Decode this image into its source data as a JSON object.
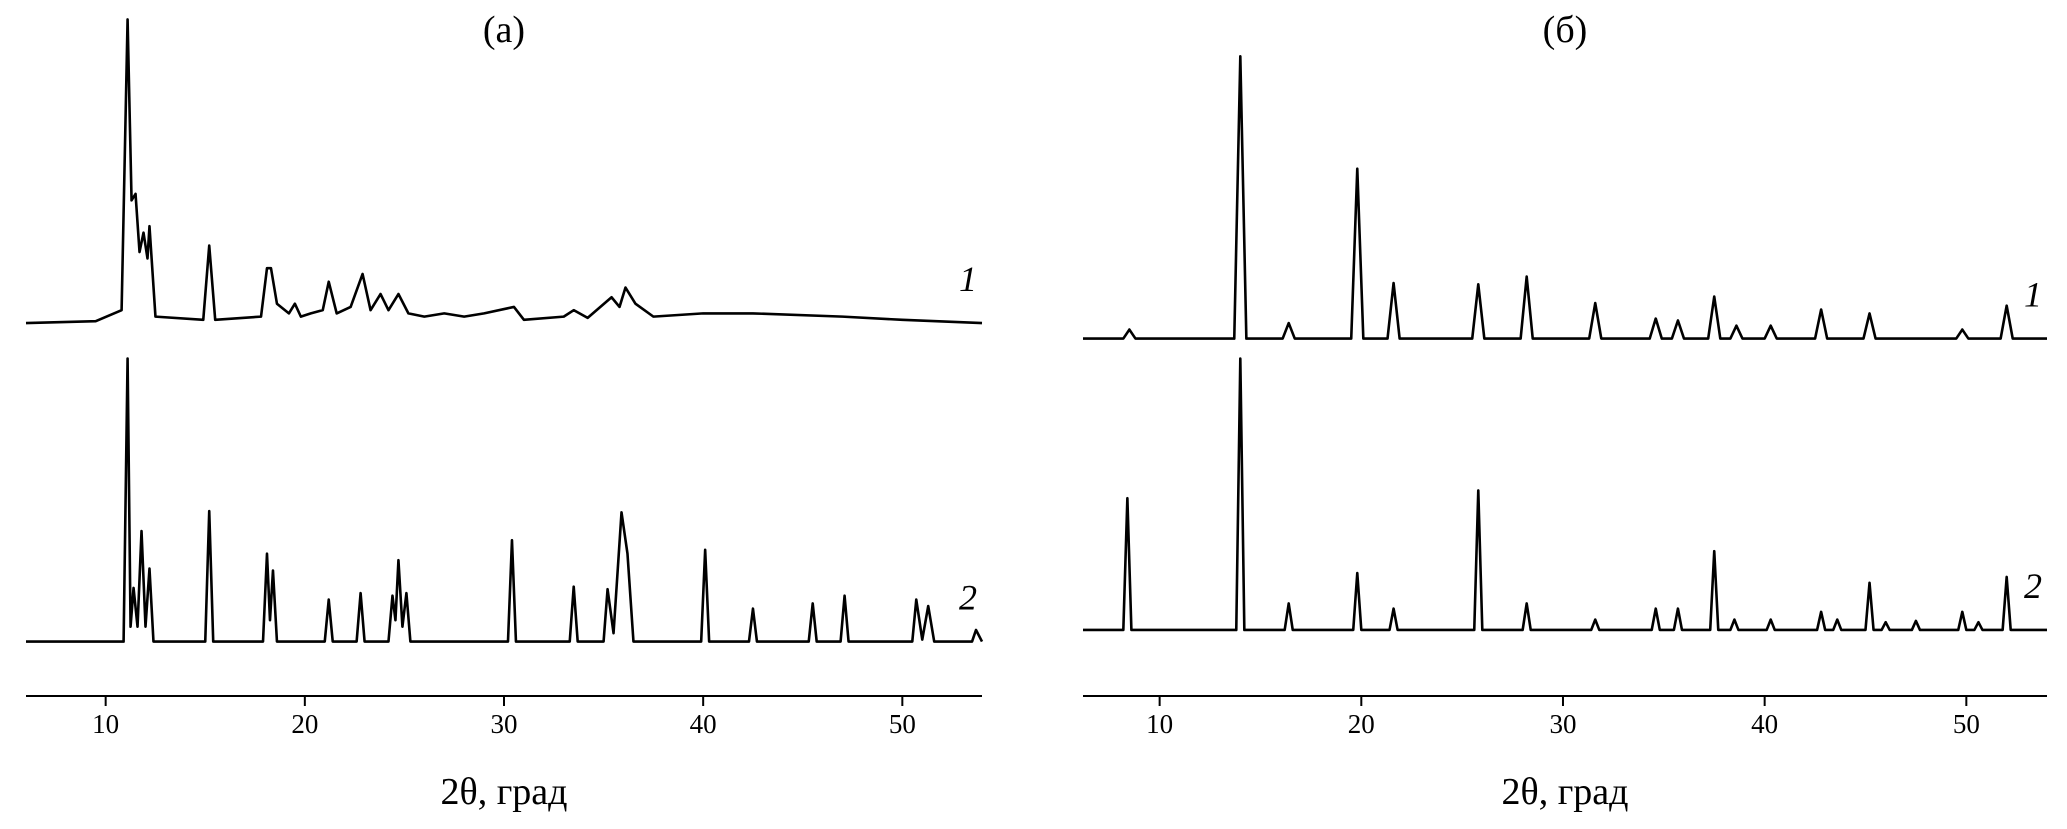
{
  "chart_data": [
    {
      "type": "line",
      "title": "(а)",
      "xlabel": "2θ, град",
      "xlim": [
        6,
        54
      ],
      "xticks": [
        10,
        20,
        30,
        40,
        50
      ],
      "ylim": [
        0,
        100
      ],
      "series": [
        {
          "name": "1",
          "color": "#000000",
          "x": [
            6,
            9.5,
            10.8,
            11.1,
            11.3,
            11.5,
            11.7,
            11.9,
            12.1,
            12.2,
            12.5,
            14.9,
            15.2,
            15.5,
            17.8,
            18.1,
            18.3,
            18.6,
            19.2,
            19.5,
            19.8,
            20.3,
            20.9,
            21.2,
            21.6,
            22.3,
            22.9,
            23.3,
            23.8,
            24.2,
            24.7,
            25.2,
            26,
            27,
            28,
            29,
            30.5,
            31,
            33.0,
            33.5,
            34.2,
            35.4,
            35.8,
            36.1,
            36.6,
            37.5,
            40,
            42.5,
            47,
            50,
            54
          ],
          "values": [
            52,
            52.3,
            54,
            99,
            71,
            72,
            63,
            66,
            62,
            67,
            53,
            52.5,
            64,
            52.5,
            53,
            60.5,
            60.5,
            55,
            53.5,
            55,
            53,
            53.5,
            54,
            58.4,
            53.5,
            54.5,
            59.6,
            54,
            56.5,
            54,
            56.5,
            53.5,
            53,
            53.5,
            53,
            53.5,
            54.5,
            52.5,
            53,
            54,
            52.8,
            56,
            54.5,
            57.5,
            55,
            53,
            53.5,
            53.5,
            53,
            52.5,
            52
          ]
        },
        {
          "name": "2",
          "color": "#000000",
          "x": [
            6,
            10.9,
            11.1,
            11.25,
            11.4,
            11.6,
            11.8,
            12.0,
            12.2,
            12.4,
            15.0,
            15.2,
            15.4,
            17.9,
            18.1,
            18.25,
            18.4,
            18.6,
            21.0,
            21.2,
            21.4,
            22.6,
            22.8,
            23.0,
            24.2,
            24.4,
            24.55,
            24.7,
            24.9,
            25.1,
            25.3,
            30.2,
            30.4,
            30.6,
            33.3,
            33.5,
            33.7,
            35.0,
            35.2,
            35.5,
            35.9,
            36.2,
            36.5,
            39.9,
            40.1,
            40.3,
            42.3,
            42.5,
            42.7,
            45.3,
            45.5,
            45.7,
            46.9,
            47.1,
            47.3,
            50.5,
            50.7,
            51.0,
            51.3,
            51.6,
            53.5,
            53.7,
            54
          ],
          "values": [
            2.7,
            2.7,
            46.5,
            5,
            11,
            5,
            19.8,
            5,
            14,
            2.7,
            2.7,
            22.9,
            2.7,
            2.7,
            16.3,
            6,
            13.7,
            2.7,
            2.7,
            9.2,
            2.7,
            2.7,
            10.2,
            2.7,
            2.7,
            9.8,
            6,
            15.3,
            5,
            10.2,
            2.7,
            2.7,
            18.4,
            2.7,
            2.7,
            11.2,
            2.7,
            2.7,
            10.8,
            4,
            22.7,
            16.3,
            2.7,
            2.7,
            16.9,
            2.7,
            2.7,
            7.8,
            2.7,
            2.7,
            8.6,
            2.7,
            2.7,
            9.8,
            2.7,
            2.7,
            9.2,
            3,
            8.2,
            2.7,
            2.7,
            4.5,
            2.7
          ]
        }
      ]
    },
    {
      "type": "line",
      "title": "(б)",
      "xlabel": "2θ, град",
      "xlim": [
        6.2,
        54
      ],
      "xticks": [
        10,
        20,
        30,
        40,
        50
      ],
      "ylim": [
        0,
        100
      ],
      "series": [
        {
          "name": "1",
          "color": "#000000",
          "x": [
            6.2,
            8.2,
            8.5,
            8.8,
            13.7,
            14,
            14.3,
            16.1,
            16.4,
            16.7,
            19.5,
            19.8,
            20.1,
            21.3,
            21.6,
            21.9,
            25.5,
            25.8,
            26.1,
            27.9,
            28.2,
            28.5,
            31.3,
            31.6,
            31.9,
            34.3,
            34.6,
            34.9,
            35.4,
            35.7,
            36.0,
            37.2,
            37.5,
            37.8,
            38.3,
            38.6,
            38.9,
            40.0,
            40.3,
            40.6,
            42.5,
            42.8,
            43.1,
            44.9,
            45.2,
            45.5,
            49.5,
            49.8,
            50.1,
            51.7,
            52,
            52.3,
            54
          ],
          "values": [
            49.6,
            49.6,
            51,
            49.6,
            49.6,
            93.3,
            49.6,
            49.6,
            52,
            49.6,
            49.6,
            75.9,
            49.6,
            49.6,
            58.2,
            49.6,
            49.6,
            58,
            49.6,
            49.6,
            59.2,
            49.6,
            49.6,
            55.1,
            49.6,
            49.6,
            52.7,
            49.6,
            49.6,
            52.4,
            49.6,
            49.6,
            56.1,
            49.6,
            49.6,
            51.6,
            49.6,
            49.6,
            51.6,
            49.6,
            49.6,
            54.1,
            49.6,
            49.6,
            53.5,
            49.6,
            49.6,
            51,
            49.6,
            49.6,
            54.7,
            49.6,
            49.6
          ]
        },
        {
          "name": "2",
          "color": "#000000",
          "x": [
            6.2,
            8.2,
            8.4,
            8.6,
            13.8,
            14,
            14.2,
            16.2,
            16.4,
            16.6,
            19.6,
            19.8,
            20.0,
            21.4,
            21.6,
            21.8,
            25.6,
            25.8,
            26.0,
            28.0,
            28.2,
            28.4,
            31.4,
            31.6,
            31.8,
            34.4,
            34.6,
            34.8,
            35.5,
            35.7,
            35.9,
            37.3,
            37.5,
            37.7,
            38.3,
            38.5,
            38.7,
            40.1,
            40.3,
            40.5,
            42.6,
            42.8,
            43.0,
            43.4,
            43.6,
            43.8,
            45.0,
            45.2,
            45.4,
            45.8,
            46,
            46.2,
            47.3,
            47.5,
            47.7,
            49.6,
            49.8,
            50.0,
            50.4,
            50.6,
            50.8,
            51.8,
            52,
            52.2,
            54
          ],
          "values": [
            4.5,
            4.5,
            24.9,
            4.5,
            4.5,
            46.5,
            4.5,
            4.5,
            8.6,
            4.5,
            4.5,
            13.3,
            4.5,
            4.5,
            7.8,
            4.5,
            4.5,
            26.1,
            4.5,
            4.5,
            8.6,
            4.5,
            4.5,
            6.1,
            4.5,
            4.5,
            7.8,
            4.5,
            4.5,
            7.8,
            4.5,
            4.5,
            16.7,
            4.5,
            4.5,
            6.1,
            4.5,
            4.5,
            6.1,
            4.5,
            4.5,
            7.3,
            4.5,
            4.5,
            6.1,
            4.5,
            4.5,
            11.8,
            4.5,
            4.5,
            5.7,
            4.5,
            4.5,
            5.9,
            4.5,
            4.5,
            7.3,
            4.5,
            4.5,
            5.7,
            4.5,
            4.5,
            12.7,
            4.5,
            4.5
          ]
        }
      ]
    }
  ]
}
